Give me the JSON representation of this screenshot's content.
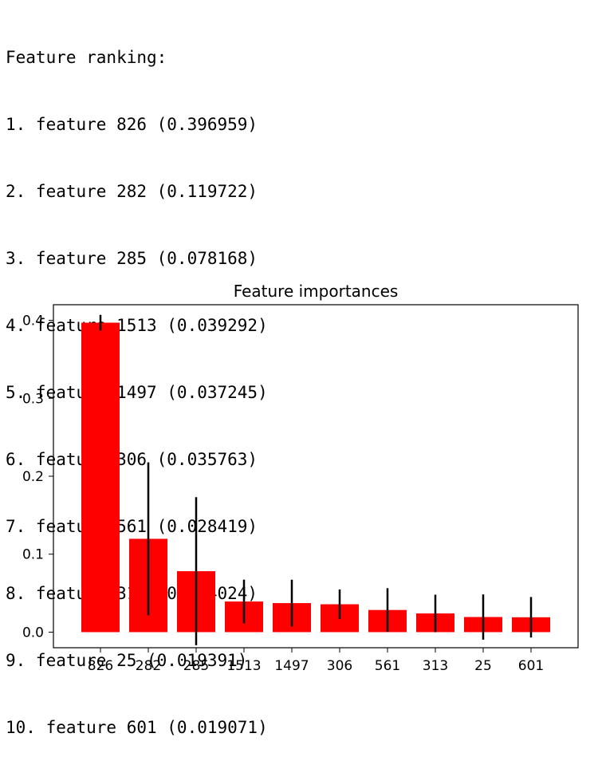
{
  "ranking": {
    "header": "Feature ranking:",
    "lines": [
      "1. feature 826 (0.396959)",
      "2. feature 282 (0.119722)",
      "3. feature 285 (0.078168)",
      "4. feature 1513 (0.039292)",
      "5. feature 1497 (0.037245)",
      "6. feature 306 (0.035763)",
      "7. feature 561 (0.028419)",
      "8. feature 313 (0.024024)",
      "9. feature 25 (0.019391)",
      "10. feature 601 (0.019071)"
    ]
  },
  "chart_data": {
    "type": "bar",
    "title": "Feature importances",
    "xlabel": "",
    "ylabel": "",
    "categories": [
      "826",
      "282",
      "285",
      "1513",
      "1497",
      "306",
      "561",
      "313",
      "25",
      "601"
    ],
    "values": [
      0.396959,
      0.119722,
      0.078168,
      0.039292,
      0.037245,
      0.035763,
      0.028419,
      0.024024,
      0.019391,
      0.019071
    ],
    "error": [
      0.01,
      0.098,
      0.095,
      0.028,
      0.03,
      0.019,
      0.028,
      0.024,
      0.029,
      0.026
    ],
    "ylim": [
      -0.02,
      0.42
    ],
    "yticks": [
      0.0,
      0.1,
      0.2,
      0.3,
      0.4
    ],
    "ytick_labels": [
      "0.0",
      "0.1",
      "0.2",
      "0.3",
      "0.4"
    ],
    "grid": false,
    "legend": "none",
    "bar_color": "#ff0000",
    "error_color": "#000000"
  }
}
